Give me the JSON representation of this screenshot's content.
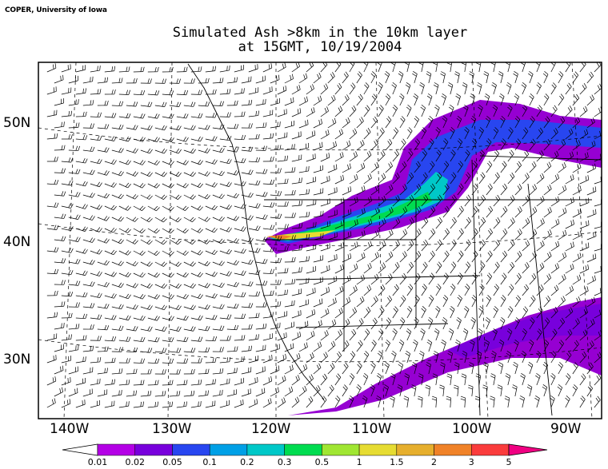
{
  "credit": "COPER, University of Iowa",
  "title_line1": "Simulated Ash >8km in the 10km layer",
  "title_line2": "at 15GMT, 10/19/2004",
  "lat_labels": [
    "50N",
    "40N",
    "30N"
  ],
  "lon_labels": [
    "140W",
    "130W",
    "120W",
    "110W",
    "100W",
    "90W"
  ],
  "colorbar": {
    "labels": [
      "0.01",
      "0.02",
      "0.05",
      "0.1",
      "0.2",
      "0.3",
      "0.5",
      "1",
      "1.5",
      "2",
      "3",
      "5"
    ],
    "colors": [
      "#b400e6",
      "#7800dc",
      "#2846f0",
      "#00a0e6",
      "#00c8c8",
      "#00dc50",
      "#a0e632",
      "#e6dc32",
      "#e6af2d",
      "#f08228",
      "#fa3c3c",
      "#f00082"
    ]
  },
  "colors": {
    "ash_low": "#9600d2",
    "ash_mid": "#2846f0",
    "ash_high": "#00dc50",
    "ash_core": "#e6dc32",
    "ash_peak": "#f08228"
  }
}
